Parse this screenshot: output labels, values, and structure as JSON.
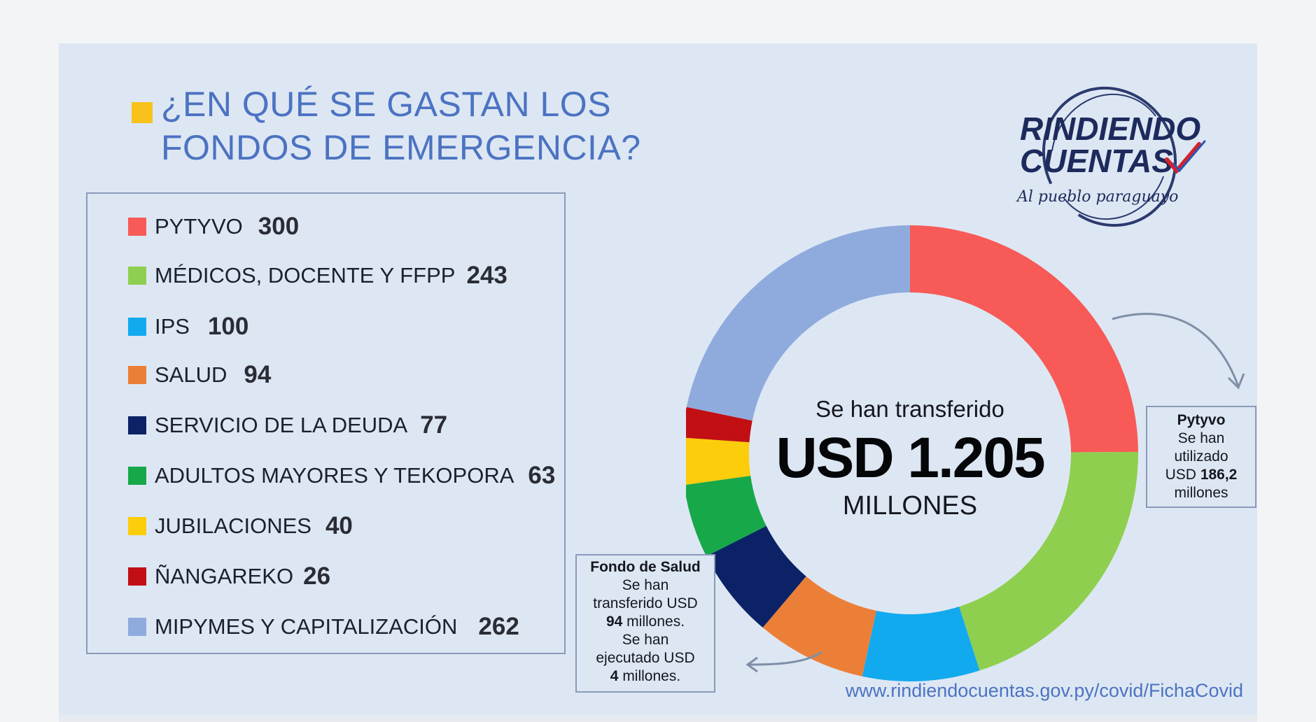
{
  "title": {
    "line1": "¿EN QUÉ SE GASTAN LOS",
    "line2": "FONDOS DE EMERGENCIA?"
  },
  "colors": {
    "accent": "#f8c11b",
    "title": "#4c73c2",
    "background": "#dde7f3"
  },
  "chart_data": {
    "type": "pie",
    "style": "donut",
    "start": "top, clockwise",
    "categories": [
      "PYTYVO",
      "MÉDICOS, DOCENTE Y FFPP",
      "IPS",
      "SALUD",
      "SERVICIO DE LA DEUDA",
      "ADULTOS MAYORES Y TEKOPORA",
      "JUBILACIONES",
      "ÑANGAREKO",
      "MIPYMES Y CAPITALIZACIÓN"
    ],
    "values": [
      300,
      243,
      100,
      94,
      77,
      63,
      40,
      26,
      262
    ],
    "value_labels": [
      "300",
      "243",
      "100",
      "94",
      "77",
      "63",
      "40",
      "26",
      "262"
    ],
    "colors": [
      "#f75a57",
      "#8fcf4f",
      "#12aaee",
      "#ec7f37",
      "#0b2266",
      "#17a84a",
      "#fccd0b",
      "#c10f14",
      "#8fabdd"
    ],
    "legend_placement": "left"
  },
  "center": {
    "line1": "Se han transferido",
    "line2": "USD 1.205",
    "line3": "MILLONES"
  },
  "note_pytyvo": {
    "title": "Pytyvo",
    "line1": "Se han",
    "line2": "utilizado",
    "line3_prefix": "USD ",
    "line3_bold": "186,2",
    "line4": "millones"
  },
  "note_salud": {
    "title": "Fondo de Salud",
    "line1": "Se han",
    "line2": "transferido USD",
    "line3_bold": "94",
    "line3_suffix": " millones.",
    "line4": "Se han",
    "line5": "ejecutado USD",
    "line6_bold": "4",
    "line6_suffix": " millones."
  },
  "logo": {
    "line1": "RINDIENDO",
    "line2": "CUENTAS",
    "tagline": "Al pueblo paraguayo"
  },
  "url": "www.rindiendocuentas.gov.py/covid/FichaCovid"
}
